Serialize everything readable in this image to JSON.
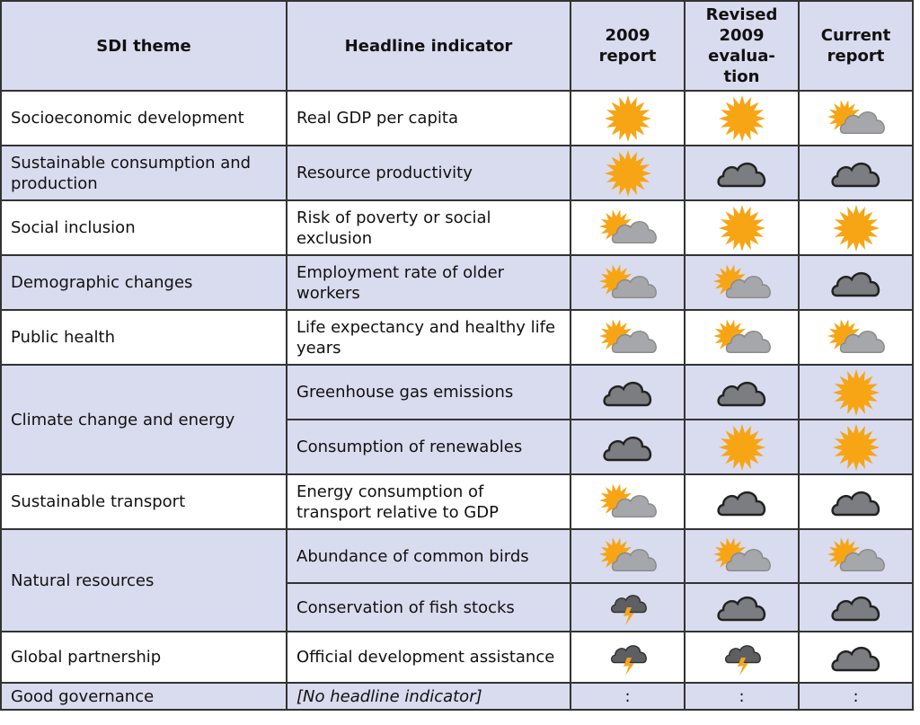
{
  "headers": {
    "theme": "SDI theme",
    "indicator": "Headline indicator",
    "col_2009": "2009 report",
    "col_revised": "Revised 2009 evalua- tion",
    "col_current": "Current report"
  },
  "legend": {
    "sun": "sun-icon",
    "sun_cloud": "sun-cloud-icon",
    "cloud": "cloud-icon",
    "storm": "storm-cloud-icon"
  },
  "rows": [
    {
      "theme": "Socioeconomic development",
      "indicator": "Real GDP per capita",
      "r2009": "sun",
      "revised": "sun",
      "current": "sun_cloud"
    },
    {
      "theme": "Sustainable consumption and production",
      "indicator": "Resource productivity",
      "r2009": "sun",
      "revised": "cloud",
      "current": "cloud"
    },
    {
      "theme": "Social inclusion",
      "indicator": "Risk of poverty or social exclusion",
      "r2009": "sun_cloud",
      "revised": "sun",
      "current": "sun"
    },
    {
      "theme": "Demographic changes",
      "indicator": "Employment rate of older workers",
      "r2009": "sun_cloud",
      "revised": "sun_cloud",
      "current": "cloud"
    },
    {
      "theme": "Public health",
      "indicator": "Life expectancy and healthy life years",
      "r2009": "sun_cloud",
      "revised": "sun_cloud",
      "current": "sun_cloud"
    },
    {
      "theme": "Climate change and energy",
      "indicator": "Greenhouse gas emissions",
      "r2009": "cloud",
      "revised": "cloud",
      "current": "sun"
    },
    {
      "theme": "",
      "indicator": "Consumption of renewables",
      "r2009": "cloud",
      "revised": "sun",
      "current": "sun"
    },
    {
      "theme": "Sustainable transport",
      "indicator": "Energy consumption of transport relative to GDP",
      "r2009": "sun_cloud",
      "revised": "cloud",
      "current": "cloud"
    },
    {
      "theme": "Natural resources",
      "indicator": "Abundance of common birds",
      "r2009": "sun_cloud",
      "revised": "sun_cloud",
      "current": "sun_cloud"
    },
    {
      "theme": "",
      "indicator": "Conservation of fish stocks",
      "r2009": "storm",
      "revised": "cloud",
      "current": "cloud"
    },
    {
      "theme": "Global partnership",
      "indicator": "Official development assistance",
      "r2009": "storm",
      "revised": "storm",
      "current": "cloud"
    },
    {
      "theme": "Good governance",
      "indicator": "[No headline indicator]",
      "r2009": ":",
      "revised": ":",
      "current": ":"
    }
  ],
  "colors": {
    "header_bg": "#d9dbef",
    "shade_bg": "#d9dbef",
    "sun": "#f7a515",
    "cloud_dark": "#7c7d80",
    "cloud_light": "#a6a7aa"
  }
}
